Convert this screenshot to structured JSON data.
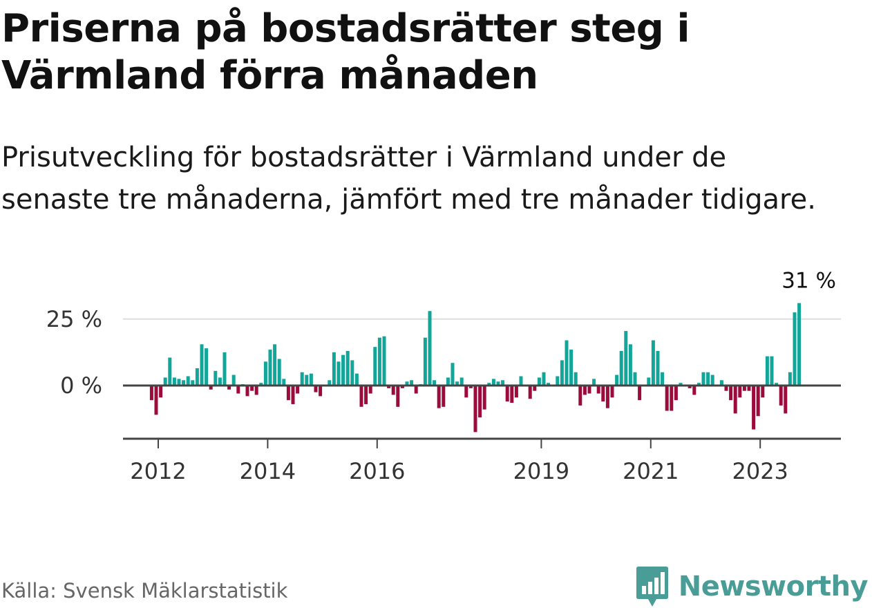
{
  "title": "Priserna på bostadsrätter steg i Värmland förra månaden",
  "subtitle": "Prisutveckling för bostadsrätter i Värmland under de senaste tre månaderna, jämfört med tre månader tidigare.",
  "source": "Källa: Svensk Mäklarstatistik",
  "brand": "Newsworthy",
  "colors": {
    "positive": "#12a59a",
    "negative": "#9b0c3c",
    "brand": "#4a9c96"
  },
  "chart_data": {
    "type": "bar",
    "y_unit": "%",
    "ylim": [
      -20,
      31
    ],
    "y_ticks": [
      {
        "value": 0,
        "label": "0 %"
      },
      {
        "value": 25,
        "label": "25 %"
      }
    ],
    "x_ticks": [
      {
        "month": "2012-01",
        "label": "2012"
      },
      {
        "month": "2014-01",
        "label": "2014"
      },
      {
        "month": "2016-01",
        "label": "2016"
      },
      {
        "month": "2019-01",
        "label": "2019"
      },
      {
        "month": "2021-01",
        "label": "2021"
      },
      {
        "month": "2023-01",
        "label": "2023"
      }
    ],
    "annotation": {
      "month": "2024-01",
      "label": "31 %"
    },
    "series": [
      {
        "month": "2011-12",
        "value": -5.5
      },
      {
        "month": "2012-01",
        "value": -11
      },
      {
        "month": "2012-02",
        "value": -4.5
      },
      {
        "month": "2012-03",
        "value": 3
      },
      {
        "month": "2012-04",
        "value": 10.5
      },
      {
        "month": "2012-05",
        "value": 3
      },
      {
        "month": "2012-06",
        "value": 2.5
      },
      {
        "month": "2012-07",
        "value": 2
      },
      {
        "month": "2012-08",
        "value": 3.5
      },
      {
        "month": "2012-09",
        "value": 2
      },
      {
        "month": "2012-10",
        "value": 6.5
      },
      {
        "month": "2012-11",
        "value": 15.5
      },
      {
        "month": "2012-12",
        "value": 14
      },
      {
        "month": "2013-01",
        "value": -1.5
      },
      {
        "month": "2013-02",
        "value": 5.5
      },
      {
        "month": "2013-03",
        "value": 3
      },
      {
        "month": "2013-04",
        "value": 12.5
      },
      {
        "month": "2013-05",
        "value": -1.5
      },
      {
        "month": "2013-06",
        "value": 4
      },
      {
        "month": "2013-07",
        "value": -3
      },
      {
        "month": "2013-08",
        "value": 0.5
      },
      {
        "month": "2013-09",
        "value": -4
      },
      {
        "month": "2013-10",
        "value": -2
      },
      {
        "month": "2013-11",
        "value": -3.5
      },
      {
        "month": "2013-12",
        "value": 1
      },
      {
        "month": "2014-01",
        "value": 9
      },
      {
        "month": "2014-02",
        "value": 13.5
      },
      {
        "month": "2014-03",
        "value": 15.5
      },
      {
        "month": "2014-04",
        "value": 10
      },
      {
        "month": "2014-05",
        "value": 2.5
      },
      {
        "month": "2014-06",
        "value": -5.5
      },
      {
        "month": "2014-07",
        "value": -7
      },
      {
        "month": "2014-08",
        "value": -3
      },
      {
        "month": "2014-09",
        "value": 5
      },
      {
        "month": "2014-10",
        "value": 4
      },
      {
        "month": "2014-11",
        "value": 4.5
      },
      {
        "month": "2014-12",
        "value": -2.5
      },
      {
        "month": "2015-01",
        "value": -4
      },
      {
        "month": "2015-02",
        "value": 0
      },
      {
        "month": "2015-03",
        "value": 2
      },
      {
        "month": "2015-04",
        "value": 12.5
      },
      {
        "month": "2015-05",
        "value": 9
      },
      {
        "month": "2015-06",
        "value": 11.5
      },
      {
        "month": "2015-07",
        "value": 13
      },
      {
        "month": "2015-08",
        "value": 9.5
      },
      {
        "month": "2015-09",
        "value": 4.5
      },
      {
        "month": "2015-10",
        "value": -8
      },
      {
        "month": "2015-11",
        "value": -7
      },
      {
        "month": "2015-12",
        "value": -3
      },
      {
        "month": "2016-01",
        "value": 14.5
      },
      {
        "month": "2016-02",
        "value": 18
      },
      {
        "month": "2016-03",
        "value": 18.5
      },
      {
        "month": "2016-04",
        "value": -1
      },
      {
        "month": "2016-05",
        "value": -3.5
      },
      {
        "month": "2016-06",
        "value": -8
      },
      {
        "month": "2016-07",
        "value": -1
      },
      {
        "month": "2016-08",
        "value": 1.5
      },
      {
        "month": "2016-09",
        "value": 2
      },
      {
        "month": "2016-10",
        "value": -3
      },
      {
        "month": "2016-11",
        "value": 0.5
      },
      {
        "month": "2016-12",
        "value": 18
      },
      {
        "month": "2017-01",
        "value": 28
      },
      {
        "month": "2017-02",
        "value": 2
      },
      {
        "month": "2017-03",
        "value": -8.5
      },
      {
        "month": "2017-04",
        "value": -8
      },
      {
        "month": "2017-05",
        "value": 3
      },
      {
        "month": "2017-06",
        "value": 8.5
      },
      {
        "month": "2017-07",
        "value": 1.5
      },
      {
        "month": "2017-08",
        "value": 3
      },
      {
        "month": "2017-09",
        "value": -4.5
      },
      {
        "month": "2017-10",
        "value": -1
      },
      {
        "month": "2017-11",
        "value": -17.5
      },
      {
        "month": "2017-12",
        "value": -12
      },
      {
        "month": "2018-01",
        "value": -9
      },
      {
        "month": "2018-02",
        "value": 1
      },
      {
        "month": "2018-03",
        "value": 2.5
      },
      {
        "month": "2018-04",
        "value": 1.5
      },
      {
        "month": "2018-05",
        "value": 2
      },
      {
        "month": "2018-06",
        "value": -6
      },
      {
        "month": "2018-07",
        "value": -6.5
      },
      {
        "month": "2018-08",
        "value": -4.5
      },
      {
        "month": "2018-09",
        "value": 3.5
      },
      {
        "month": "2018-10",
        "value": 0
      },
      {
        "month": "2018-11",
        "value": -5
      },
      {
        "month": "2018-12",
        "value": -2
      },
      {
        "month": "2019-01",
        "value": 3
      },
      {
        "month": "2019-02",
        "value": 5
      },
      {
        "month": "2019-03",
        "value": 1
      },
      {
        "month": "2019-04",
        "value": 0
      },
      {
        "month": "2019-05",
        "value": 3.5
      },
      {
        "month": "2019-06",
        "value": 9.5
      },
      {
        "month": "2019-07",
        "value": 17
      },
      {
        "month": "2019-08",
        "value": 13.5
      },
      {
        "month": "2019-09",
        "value": 5
      },
      {
        "month": "2019-10",
        "value": -7.5
      },
      {
        "month": "2019-11",
        "value": -3.5
      },
      {
        "month": "2019-12",
        "value": -3
      },
      {
        "month": "2020-01",
        "value": 2.5
      },
      {
        "month": "2020-02",
        "value": -3
      },
      {
        "month": "2020-03",
        "value": -6
      },
      {
        "month": "2020-04",
        "value": -8.5
      },
      {
        "month": "2020-05",
        "value": -4.5
      },
      {
        "month": "2020-06",
        "value": 4
      },
      {
        "month": "2020-07",
        "value": 13
      },
      {
        "month": "2020-08",
        "value": 20.5
      },
      {
        "month": "2020-09",
        "value": 15.5
      },
      {
        "month": "2020-10",
        "value": 5
      },
      {
        "month": "2020-11",
        "value": -5.5
      },
      {
        "month": "2020-12",
        "value": 0
      },
      {
        "month": "2021-01",
        "value": 3
      },
      {
        "month": "2021-02",
        "value": 17
      },
      {
        "month": "2021-03",
        "value": 13
      },
      {
        "month": "2021-04",
        "value": 5
      },
      {
        "month": "2021-05",
        "value": -9.5
      },
      {
        "month": "2021-06",
        "value": -9.5
      },
      {
        "month": "2021-07",
        "value": -5.5
      },
      {
        "month": "2021-08",
        "value": 1
      },
      {
        "month": "2021-09",
        "value": 0
      },
      {
        "month": "2021-10",
        "value": -1
      },
      {
        "month": "2021-11",
        "value": -3.5
      },
      {
        "month": "2021-12",
        "value": 1
      },
      {
        "month": "2022-01",
        "value": 5
      },
      {
        "month": "2022-02",
        "value": 5
      },
      {
        "month": "2022-03",
        "value": 4
      },
      {
        "month": "2022-04",
        "value": 0
      },
      {
        "month": "2022-05",
        "value": 2
      },
      {
        "month": "2022-06",
        "value": -2
      },
      {
        "month": "2022-07",
        "value": -5.5
      },
      {
        "month": "2022-08",
        "value": -10.5
      },
      {
        "month": "2022-09",
        "value": -4.5
      },
      {
        "month": "2022-10",
        "value": -2
      },
      {
        "month": "2022-11",
        "value": -2
      },
      {
        "month": "2022-12",
        "value": -16.5
      },
      {
        "month": "2023-01",
        "value": -11.5
      },
      {
        "month": "2023-02",
        "value": -4.5
      },
      {
        "month": "2023-03",
        "value": 11
      },
      {
        "month": "2023-04",
        "value": 11
      },
      {
        "month": "2023-05",
        "value": 1
      },
      {
        "month": "2023-06",
        "value": -7.5
      },
      {
        "month": "2023-07",
        "value": -10.5
      },
      {
        "month": "2023-08",
        "value": 5
      },
      {
        "month": "2023-09",
        "value": 27.5
      },
      {
        "month": "2023-10",
        "value": 31
      }
    ]
  }
}
